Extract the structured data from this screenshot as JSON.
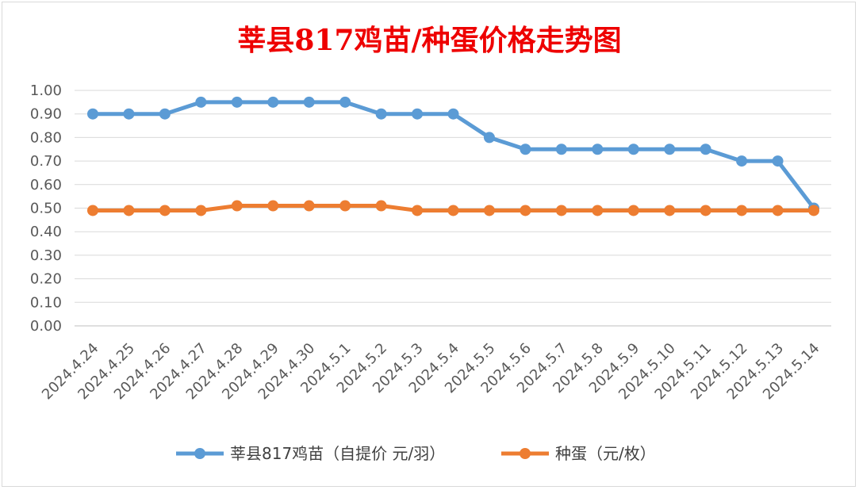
{
  "chart_data": {
    "type": "line",
    "title": "莘县817鸡苗/种蛋价格走势图",
    "categories": [
      "2024.4.24",
      "2024.4.25",
      "2024.4.26",
      "2024.4.27",
      "2024.4.28",
      "2024.4.29",
      "2024.4.30",
      "2024.5.1",
      "2024.5.2",
      "2024.5.3",
      "2024.5.4",
      "2024.5.5",
      "2024.5.6",
      "2024.5.7",
      "2024.5.8",
      "2024.5.9",
      "2024.5.10",
      "2024.5.11",
      "2024.5.12",
      "2024.5.13",
      "2024.5.14"
    ],
    "series": [
      {
        "name": "莘县817鸡苗（自提价 元/羽）",
        "color": "#5b9bd5",
        "values": [
          0.9,
          0.9,
          0.9,
          0.95,
          0.95,
          0.95,
          0.95,
          0.95,
          0.9,
          0.9,
          0.9,
          0.8,
          0.75,
          0.75,
          0.75,
          0.75,
          0.75,
          0.75,
          0.7,
          0.7,
          0.5
        ]
      },
      {
        "name": "种蛋（元/枚）",
        "color": "#ed7d31",
        "values": [
          0.49,
          0.49,
          0.49,
          0.49,
          0.51,
          0.51,
          0.51,
          0.51,
          0.51,
          0.49,
          0.49,
          0.49,
          0.49,
          0.49,
          0.49,
          0.49,
          0.49,
          0.49,
          0.49,
          0.49,
          0.49
        ]
      }
    ],
    "yticks": [
      "0.00",
      "0.10",
      "0.20",
      "0.30",
      "0.40",
      "0.50",
      "0.60",
      "0.70",
      "0.80",
      "0.90",
      "1.00"
    ],
    "ylim": [
      0,
      1.0
    ],
    "grid": true,
    "legend": "bottom"
  }
}
